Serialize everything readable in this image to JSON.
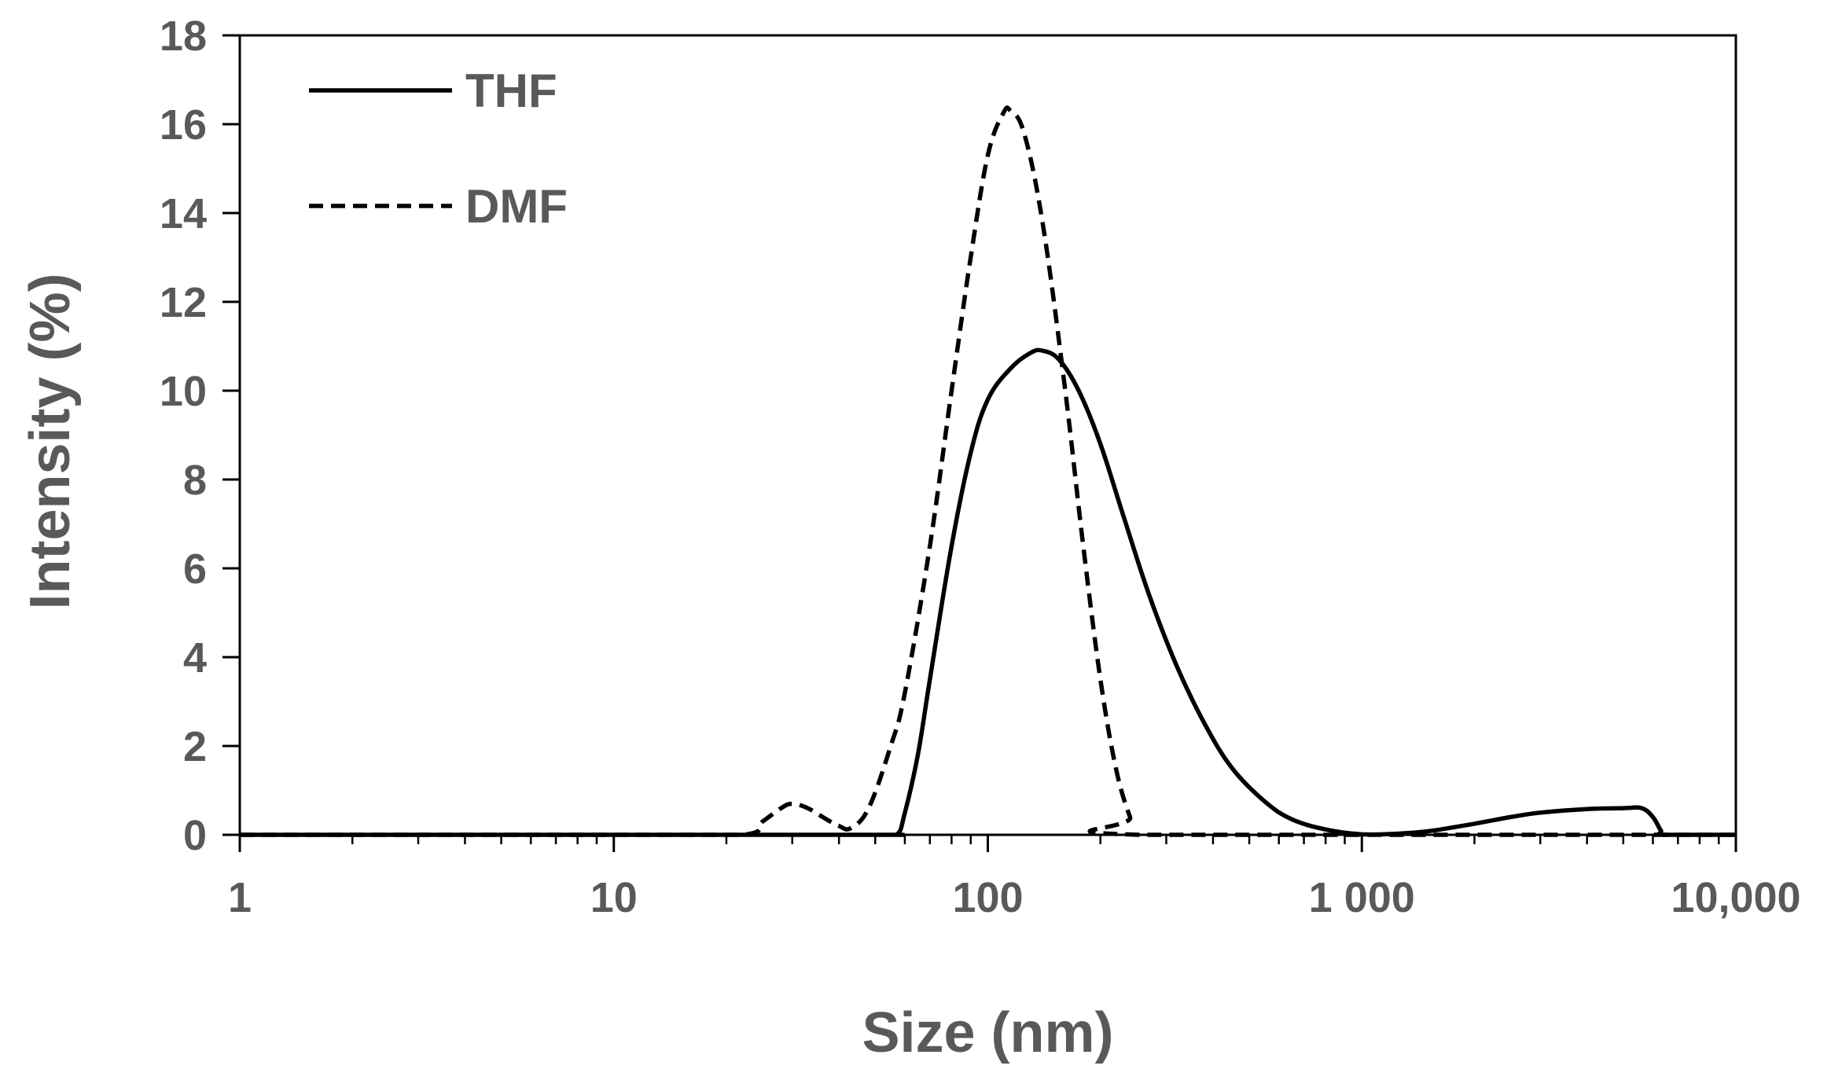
{
  "chart_data": {
    "type": "line",
    "title": "",
    "xlabel": "Size (nm)",
    "ylabel": "Intensity (%)",
    "x_scale": "log",
    "xlim": [
      1,
      10000
    ],
    "ylim": [
      0,
      18
    ],
    "x_ticks": [
      {
        "value": 1,
        "label": "1"
      },
      {
        "value": 10,
        "label": "10"
      },
      {
        "value": 100,
        "label": "100"
      },
      {
        "value": 1000,
        "label": "1 000"
      },
      {
        "value": 10000,
        "label": "10,000"
      }
    ],
    "y_ticks": [
      {
        "value": 0,
        "label": "0"
      },
      {
        "value": 2,
        "label": "2"
      },
      {
        "value": 4,
        "label": "4"
      },
      {
        "value": 6,
        "label": "6"
      },
      {
        "value": 8,
        "label": "8"
      },
      {
        "value": 10,
        "label": "10"
      },
      {
        "value": 12,
        "label": "12"
      },
      {
        "value": 14,
        "label": "14"
      },
      {
        "value": 16,
        "label": "16"
      },
      {
        "value": 18,
        "label": "18"
      }
    ],
    "grid": false,
    "legend_position": "top-left",
    "series": [
      {
        "name": "THF",
        "style": "solid",
        "color": "#000000",
        "points": [
          [
            1,
            0
          ],
          [
            10,
            0
          ],
          [
            50,
            0
          ],
          [
            57,
            0
          ],
          [
            60,
            0.5
          ],
          [
            65,
            1.8
          ],
          [
            70,
            3.5
          ],
          [
            80,
            6.5
          ],
          [
            90,
            8.6
          ],
          [
            100,
            9.8
          ],
          [
            115,
            10.5
          ],
          [
            130,
            10.85
          ],
          [
            140,
            10.9
          ],
          [
            155,
            10.7
          ],
          [
            175,
            10.0
          ],
          [
            200,
            8.8
          ],
          [
            230,
            7.2
          ],
          [
            270,
            5.4
          ],
          [
            320,
            3.8
          ],
          [
            380,
            2.5
          ],
          [
            450,
            1.5
          ],
          [
            550,
            0.75
          ],
          [
            650,
            0.35
          ],
          [
            800,
            0.12
          ],
          [
            1000,
            0.01
          ],
          [
            1200,
            0.02
          ],
          [
            1500,
            0.08
          ],
          [
            2000,
            0.25
          ],
          [
            2500,
            0.4
          ],
          [
            3000,
            0.5
          ],
          [
            4000,
            0.58
          ],
          [
            5000,
            0.6
          ],
          [
            5600,
            0.6
          ],
          [
            6000,
            0.4
          ],
          [
            6300,
            0.1
          ],
          [
            6500,
            0
          ],
          [
            10000,
            0
          ]
        ]
      },
      {
        "name": "DMF",
        "style": "dashed",
        "color": "#000000",
        "points": [
          [
            1,
            0
          ],
          [
            10,
            0
          ],
          [
            22,
            0
          ],
          [
            25,
            0.3
          ],
          [
            28,
            0.6
          ],
          [
            30,
            0.7
          ],
          [
            33,
            0.6
          ],
          [
            37,
            0.35
          ],
          [
            40,
            0.2
          ],
          [
            43,
            0.15
          ],
          [
            48,
            0.6
          ],
          [
            55,
            2.0
          ],
          [
            60,
            3.2
          ],
          [
            70,
            6.5
          ],
          [
            80,
            10.0
          ],
          [
            90,
            13.0
          ],
          [
            100,
            15.3
          ],
          [
            110,
            16.25
          ],
          [
            115,
            16.3
          ],
          [
            125,
            15.8
          ],
          [
            140,
            13.8
          ],
          [
            160,
            10.2
          ],
          [
            180,
            6.5
          ],
          [
            200,
            3.5
          ],
          [
            220,
            1.5
          ],
          [
            240,
            0.4
          ],
          [
            255,
            0
          ],
          [
            10000,
            0
          ]
        ]
      }
    ]
  }
}
